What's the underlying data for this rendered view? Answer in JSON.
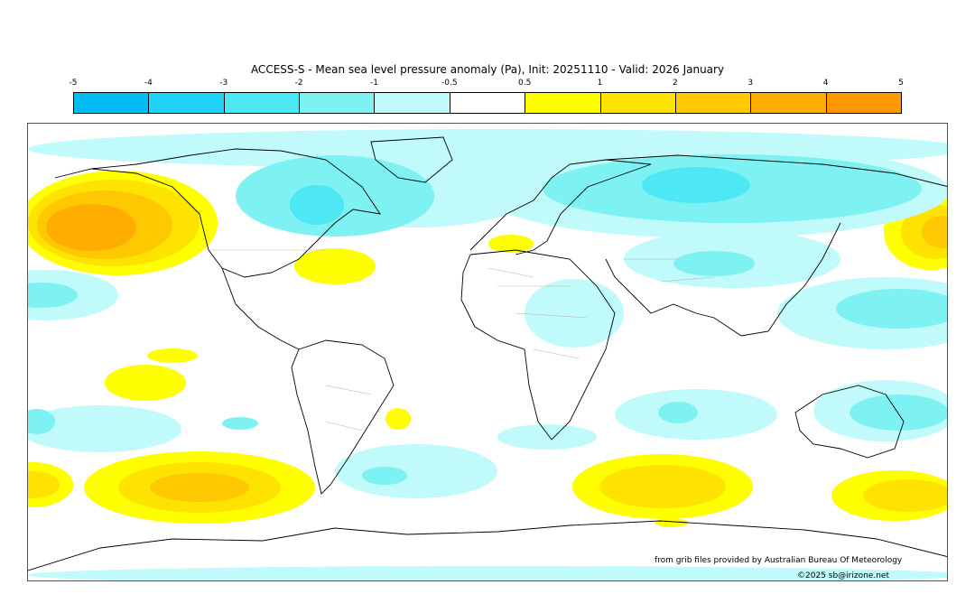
{
  "title": "ACCESS-S - Mean sea level pressure anomaly (Pa), Init: 20251110 - Valid: 2026 January",
  "legend": {
    "ticks": [
      "-5",
      "-4",
      "-3",
      "-2",
      "-1",
      "-0.5",
      "0.5",
      "1",
      "2",
      "3",
      "4",
      "5"
    ],
    "colors": [
      "#00bcf2",
      "#1fd3f7",
      "#4ee8f4",
      "#7ef2f2",
      "#c0fafa",
      "#ffffff",
      "#ffff00",
      "#ffe300",
      "#ffc800",
      "#ffad00",
      "#ff9700"
    ]
  },
  "map": {
    "land_outline_color": "#000000",
    "border_color": "#b4b4b4"
  },
  "credits": {
    "source": "from grib files provided by Australian Bureau Of Meteorology",
    "copyright": "©2025 sb@irizone.net"
  }
}
